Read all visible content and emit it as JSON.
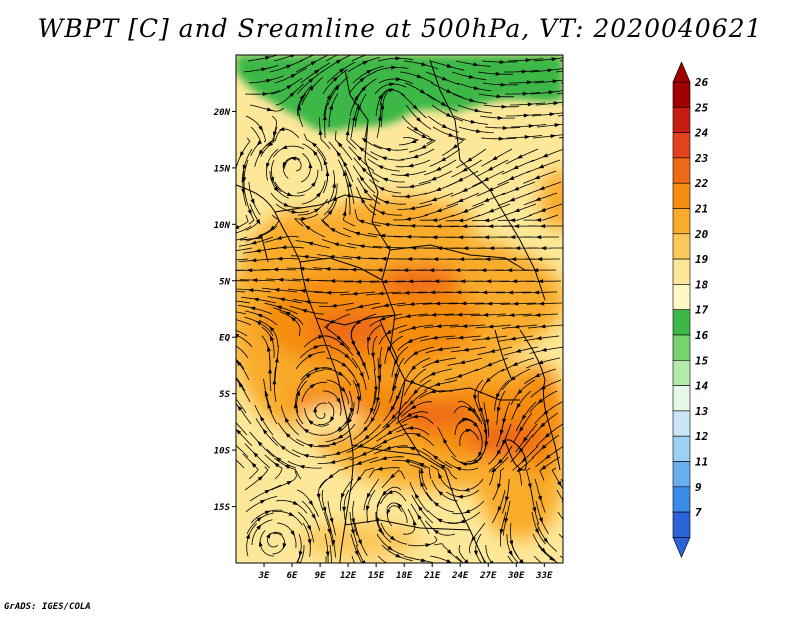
{
  "title": "WBPT [C] and Sreamline at 500hPa, VT: 2020040621",
  "footer": "GrADS: IGES/COLA",
  "map": {
    "region": "Central and Southern Africa (Congo Basin)",
    "lat_range": [
      -20,
      25
    ],
    "lon_range": [
      0,
      35
    ],
    "y_tick_labels": [
      "20N",
      "15N",
      "10N",
      "5N",
      "EQ",
      "5S",
      "10S",
      "15S"
    ],
    "x_tick_labels": [
      "3E",
      "6E",
      "9E",
      "12E",
      "15E",
      "18E",
      "21E",
      "24E",
      "27E",
      "30E",
      "33E"
    ],
    "y_tick_values": [
      20,
      15,
      10,
      5,
      0,
      -5,
      -10,
      -15
    ],
    "x_tick_values": [
      3,
      6,
      9,
      12,
      15,
      18,
      21,
      24,
      27,
      30,
      33
    ]
  },
  "colorbar": {
    "labels": [
      "26",
      "25",
      "24",
      "23",
      "22",
      "21",
      "20",
      "19",
      "18",
      "17",
      "16",
      "15",
      "14",
      "13",
      "12",
      "11",
      "9",
      "7"
    ],
    "colors": [
      "#a00000",
      "#c81e12",
      "#e3421e",
      "#ef6a14",
      "#f68c10",
      "#f9ab2a",
      "#fbc85a",
      "#fde89a",
      "#fff7c4",
      "#3cb846",
      "#78d26e",
      "#b4eaaa",
      "#e6f8e6",
      "#c8e6f8",
      "#9cd0f4",
      "#6aaef0",
      "#3a8ce6",
      "#2a64d8"
    ]
  }
}
